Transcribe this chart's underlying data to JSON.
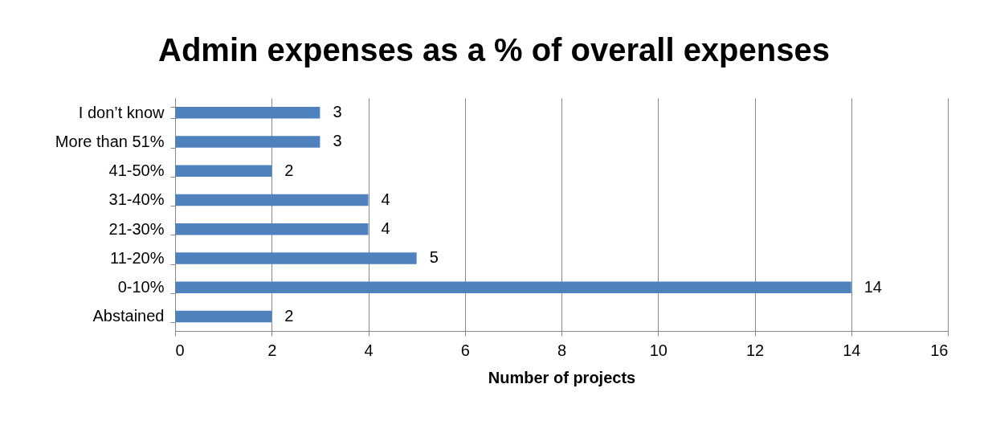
{
  "chart_data": {
    "type": "bar",
    "title": "Admin expenses as a % of overall expenses",
    "xlabel": "Number of projects",
    "categories": [
      "I don’t know",
      "More than 51%",
      "41-50%",
      "31-40%",
      "21-30%",
      "11-20%",
      "0-10%",
      "Abstained"
    ],
    "values": [
      3,
      3,
      2,
      4,
      4,
      5,
      14,
      2
    ],
    "color": "#4f81bd",
    "orientation": "horizontal",
    "xlim": [
      0,
      16
    ],
    "xticks": [
      0,
      2,
      4,
      6,
      8,
      10,
      12,
      14,
      16
    ],
    "grid": "x",
    "data_labels": true
  }
}
